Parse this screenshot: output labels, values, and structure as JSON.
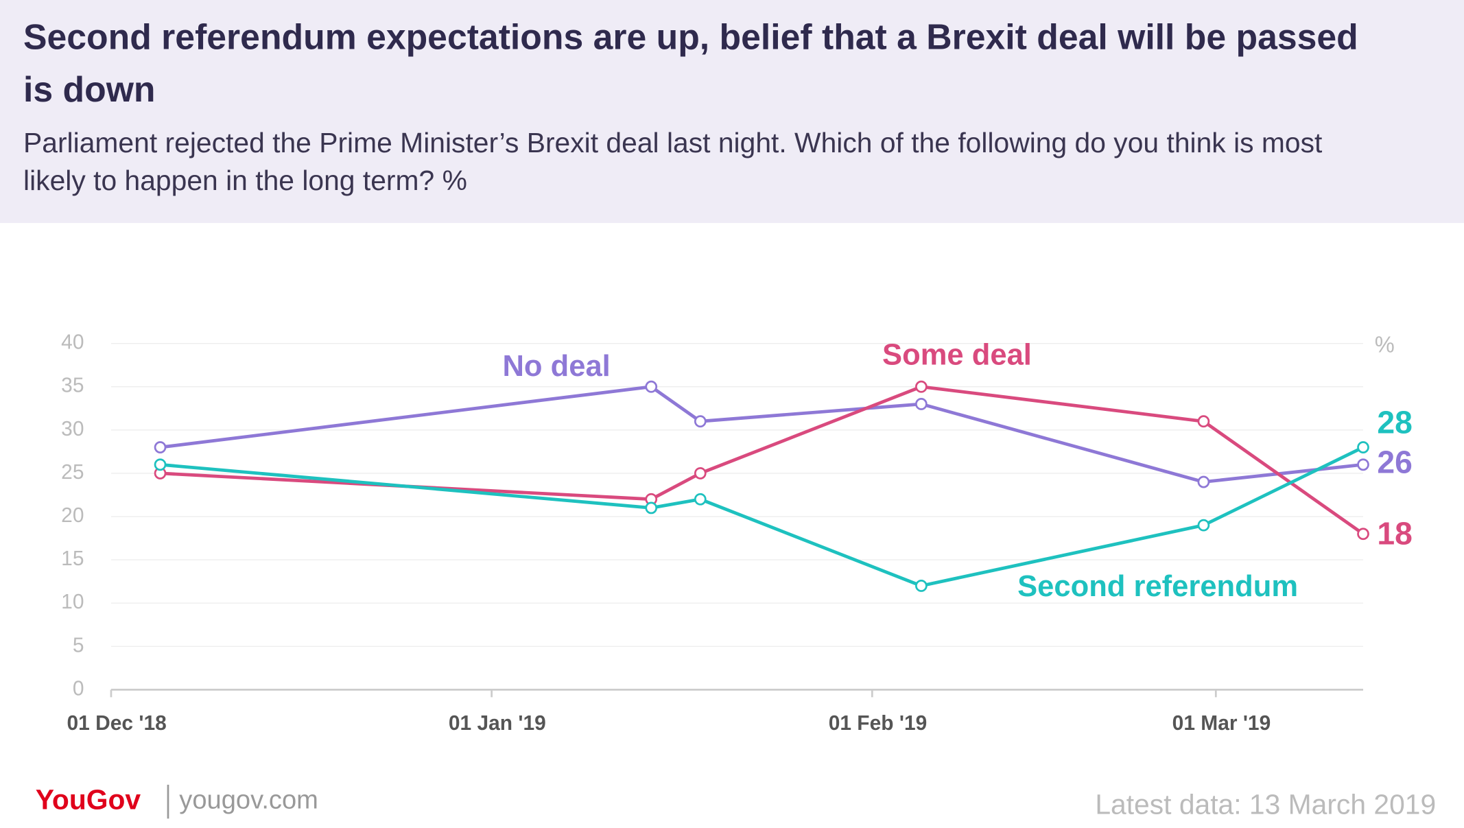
{
  "chart_data": {
    "type": "line",
    "title": "Second referendum expectations are up, belief that a Brexit deal will be passed is down",
    "subtitle": "Parliament rejected the Prime Minister’s Brexit deal last night. Which of the following do you think is most likely to happen in the long term? %",
    "y_unit": "%",
    "x": [
      "2018-12-05",
      "2019-01-14",
      "2019-01-18",
      "2019-02-05",
      "2019-02-28",
      "2019-03-13"
    ],
    "xlim": [
      "2018-12-01",
      "2019-03-13"
    ],
    "xticks": [
      {
        "value": "2018-12-01",
        "label": "01 Dec '18"
      },
      {
        "value": "2019-01-01",
        "label": "01 Jan '19"
      },
      {
        "value": "2019-02-01",
        "label": "01 Feb '19"
      },
      {
        "value": "2019-03-01",
        "label": "01 Mar '19"
      }
    ],
    "ylim": [
      0,
      40
    ],
    "yticks": [
      0,
      5,
      10,
      15,
      20,
      25,
      30,
      35,
      40
    ],
    "grid": true,
    "series": [
      {
        "name": "No deal",
        "color": "#8e78d6",
        "values": [
          28,
          35,
          31,
          33,
          24,
          26
        ]
      },
      {
        "name": "Some deal",
        "color": "#d94a7e",
        "values": [
          25,
          22,
          25,
          35,
          31,
          18
        ]
      },
      {
        "name": "Second referendum",
        "color": "#1ec1bf",
        "values": [
          26,
          21,
          22,
          12,
          19,
          28
        ]
      }
    ],
    "footer": {
      "brand": "YouGov",
      "site": "yougov.com",
      "note": "Latest data: 13 March 2019"
    }
  }
}
